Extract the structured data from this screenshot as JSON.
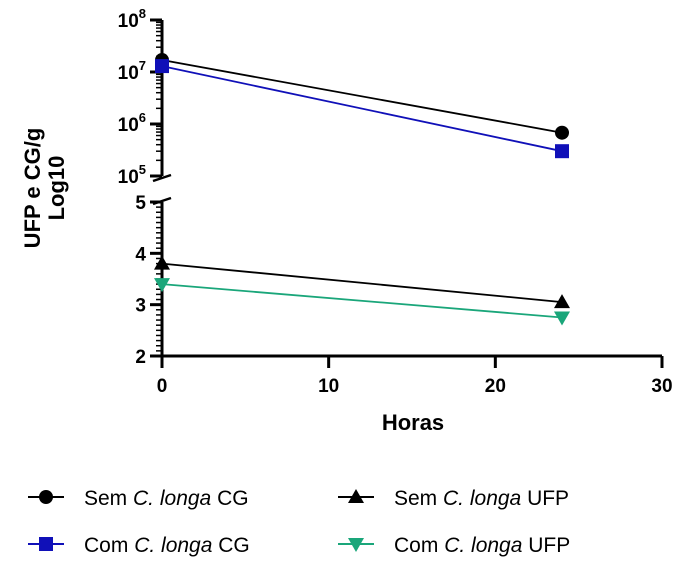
{
  "chart_data": {
    "type": "line",
    "xlabel": "Horas",
    "ylabel": "UFP e CG/g",
    "ylabel_line2": "Log10",
    "xlim": [
      0,
      30
    ],
    "x_ticks": [
      "0",
      "10",
      "20",
      "30"
    ],
    "axes": [
      {
        "panel": "top",
        "scale": "log",
        "ylim": [
          100000,
          100000000
        ],
        "y_ticks": [
          {
            "base": "10",
            "exp": "8"
          },
          {
            "base": "10",
            "exp": "7"
          },
          {
            "base": "10",
            "exp": "6"
          },
          {
            "base": "10",
            "exp": "5"
          }
        ]
      },
      {
        "panel": "bottom",
        "scale": "linear",
        "ylim": [
          2,
          5
        ],
        "y_ticks": [
          "5",
          "4",
          "3",
          "2"
        ]
      }
    ],
    "series": [
      {
        "name_prefix": "Sem ",
        "name_italic": "C. longa",
        "name_suffix": " CG",
        "panel": "top",
        "marker": "circle",
        "color": "#000000",
        "x": [
          0,
          24
        ],
        "y": [
          17000000,
          680000
        ]
      },
      {
        "name_prefix": "Com ",
        "name_italic": "C. longa",
        "name_suffix": " CG",
        "panel": "top",
        "marker": "square",
        "color": "#1010b8",
        "x": [
          0,
          24
        ],
        "y": [
          13000000,
          300000
        ]
      },
      {
        "name_prefix": "Sem ",
        "name_italic": "C. longa",
        "name_suffix": " UFP",
        "panel": "bottom",
        "marker": "triangle-up",
        "color": "#000000",
        "x": [
          0,
          24
        ],
        "y": [
          3.8,
          3.05
        ]
      },
      {
        "name_prefix": "Com ",
        "name_italic": "C. longa",
        "name_suffix": " UFP",
        "panel": "bottom",
        "marker": "triangle-down",
        "color": "#1aa67a",
        "x": [
          0,
          24
        ],
        "y": [
          3.4,
          2.75
        ]
      }
    ]
  }
}
